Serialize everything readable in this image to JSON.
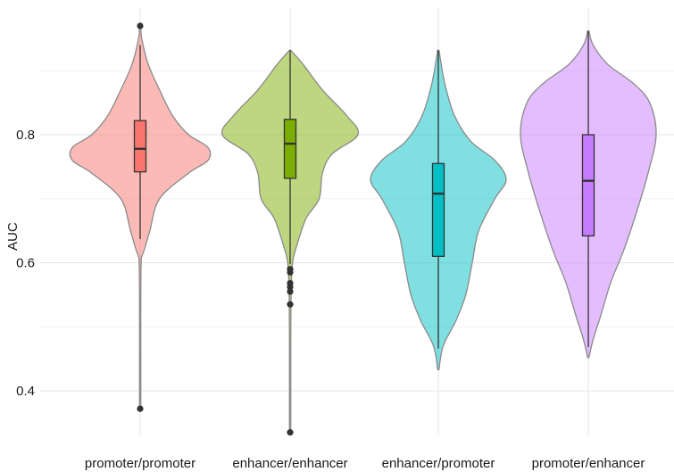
{
  "chart_data": {
    "type": "violin",
    "title": "",
    "xlabel": "",
    "ylabel": "AUC",
    "ylim": [
      0.32,
      0.98
    ],
    "yticks": [
      0.4,
      0.6,
      0.8
    ],
    "ytick_labels": [
      "0.4",
      "0.6",
      "0.8"
    ],
    "grid": true,
    "legend": "none",
    "categories": [
      "promoter/promoter",
      "enhancer/enhancer",
      "enhancer/promoter",
      "promoter/enhancer"
    ],
    "groups": [
      {
        "label": "promoter/promoter",
        "fill": "#F8766D",
        "box": {
          "q1": 0.742,
          "median": 0.778,
          "q3": 0.822,
          "whisker_low": 0.637,
          "whisker_high": 0.94
        },
        "outliers": [
          0.372,
          0.97
        ],
        "density": [
          [
            0.372,
            0.004
          ],
          [
            0.45,
            0.004
          ],
          [
            0.55,
            0.004
          ],
          [
            0.6,
            0.006
          ],
          [
            0.61,
            0.01
          ],
          [
            0.62,
            0.025
          ],
          [
            0.65,
            0.06
          ],
          [
            0.7,
            0.12
          ],
          [
            0.74,
            0.3
          ],
          [
            0.76,
            0.42
          ],
          [
            0.78,
            0.42
          ],
          [
            0.8,
            0.3
          ],
          [
            0.83,
            0.2
          ],
          [
            0.87,
            0.12
          ],
          [
            0.91,
            0.05
          ],
          [
            0.95,
            0.01
          ],
          [
            0.97,
            0.004
          ]
        ]
      },
      {
        "label": "enhancer/enhancer",
        "fill": "#7CAE00",
        "box": {
          "q1": 0.732,
          "median": 0.786,
          "q3": 0.824,
          "whisker_low": 0.598,
          "whisker_high": 0.932
        },
        "outliers": [
          0.59,
          0.585,
          0.568,
          0.562,
          0.555,
          0.535,
          0.335
        ],
        "density": [
          [
            0.335,
            0.004
          ],
          [
            0.45,
            0.004
          ],
          [
            0.55,
            0.006
          ],
          [
            0.6,
            0.015
          ],
          [
            0.63,
            0.045
          ],
          [
            0.67,
            0.1
          ],
          [
            0.7,
            0.18
          ],
          [
            0.74,
            0.2
          ],
          [
            0.77,
            0.26
          ],
          [
            0.8,
            0.42
          ],
          [
            0.83,
            0.35
          ],
          [
            0.87,
            0.2
          ],
          [
            0.91,
            0.08
          ],
          [
            0.932,
            0.004
          ]
        ]
      },
      {
        "label": "enhancer/promoter",
        "fill": "#00BFC4",
        "box": {
          "q1": 0.61,
          "median": 0.708,
          "q3": 0.755,
          "whisker_low": 0.466,
          "whisker_high": 0.932
        },
        "outliers": [],
        "density": [
          [
            0.433,
            0.004
          ],
          [
            0.47,
            0.03
          ],
          [
            0.51,
            0.11
          ],
          [
            0.55,
            0.17
          ],
          [
            0.6,
            0.21
          ],
          [
            0.65,
            0.25
          ],
          [
            0.7,
            0.35
          ],
          [
            0.73,
            0.42
          ],
          [
            0.76,
            0.35
          ],
          [
            0.79,
            0.2
          ],
          [
            0.83,
            0.1
          ],
          [
            0.88,
            0.04
          ],
          [
            0.932,
            0.004
          ]
        ]
      },
      {
        "label": "promoter/enhancer",
        "fill": "#C77CFF",
        "box": {
          "q1": 0.642,
          "median": 0.728,
          "q3": 0.8,
          "whisker_low": 0.468,
          "whisker_high": 0.962
        },
        "outliers": [],
        "density": [
          [
            0.452,
            0.004
          ],
          [
            0.48,
            0.03
          ],
          [
            0.52,
            0.08
          ],
          [
            0.57,
            0.14
          ],
          [
            0.62,
            0.22
          ],
          [
            0.68,
            0.3
          ],
          [
            0.74,
            0.37
          ],
          [
            0.8,
            0.42
          ],
          [
            0.85,
            0.38
          ],
          [
            0.88,
            0.28
          ],
          [
            0.91,
            0.12
          ],
          [
            0.94,
            0.03
          ],
          [
            0.962,
            0.004
          ]
        ]
      }
    ]
  }
}
